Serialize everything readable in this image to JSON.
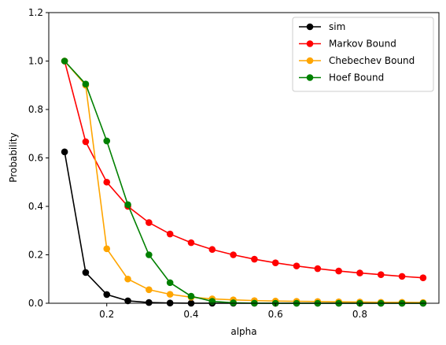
{
  "chart_data": {
    "type": "line",
    "xlabel": "alpha",
    "ylabel": "Probability",
    "xlim": [
      0.0625,
      0.9875
    ],
    "ylim": [
      0,
      1.2
    ],
    "xticks": [
      0.2,
      0.4,
      0.6,
      0.8
    ],
    "yticks": [
      0.0,
      0.2,
      0.4,
      0.6,
      0.8,
      1.0,
      1.2
    ],
    "xtick_labels": [
      "0.2",
      "0.4",
      "0.6",
      "0.8"
    ],
    "ytick_labels": [
      "0.0",
      "0.2",
      "0.4",
      "0.6",
      "0.8",
      "1.0",
      "1.2"
    ],
    "grid": false,
    "legend_position": "top-right",
    "x": [
      0.1,
      0.15,
      0.2,
      0.25,
      0.3,
      0.35,
      0.4,
      0.45,
      0.5,
      0.55,
      0.6,
      0.65,
      0.7,
      0.75,
      0.8,
      0.85,
      0.9,
      0.95
    ],
    "series": [
      {
        "name": "sim",
        "color": "#000000",
        "values": [
          0.625,
          0.127,
          0.036,
          0.01,
          0.003,
          0.001,
          0.0003,
          0.0001,
          0,
          0,
          0,
          0,
          0,
          0,
          0,
          0,
          0,
          0
        ]
      },
      {
        "name": "Markov Bound",
        "color": "#ff0000",
        "values": [
          1.0,
          0.667,
          0.5,
          0.4,
          0.333,
          0.286,
          0.25,
          0.222,
          0.2,
          0.182,
          0.167,
          0.154,
          0.143,
          0.133,
          0.125,
          0.118,
          0.111,
          0.105
        ]
      },
      {
        "name": "Chebechev Bound",
        "color": "#ffa500",
        "values": [
          1.0,
          0.9,
          0.225,
          0.1,
          0.056,
          0.037,
          0.025,
          0.018,
          0.014,
          0.011,
          0.009,
          0.008,
          0.007,
          0.006,
          0.005,
          0.004,
          0.004,
          0.003
        ]
      },
      {
        "name": "Hoef Bound",
        "color": "#008000",
        "values": [
          1.0,
          0.905,
          0.67,
          0.407,
          0.2,
          0.085,
          0.029,
          0.008,
          0.002,
          0.0004,
          0,
          0,
          0,
          0,
          0,
          0,
          0,
          0
        ]
      }
    ]
  }
}
